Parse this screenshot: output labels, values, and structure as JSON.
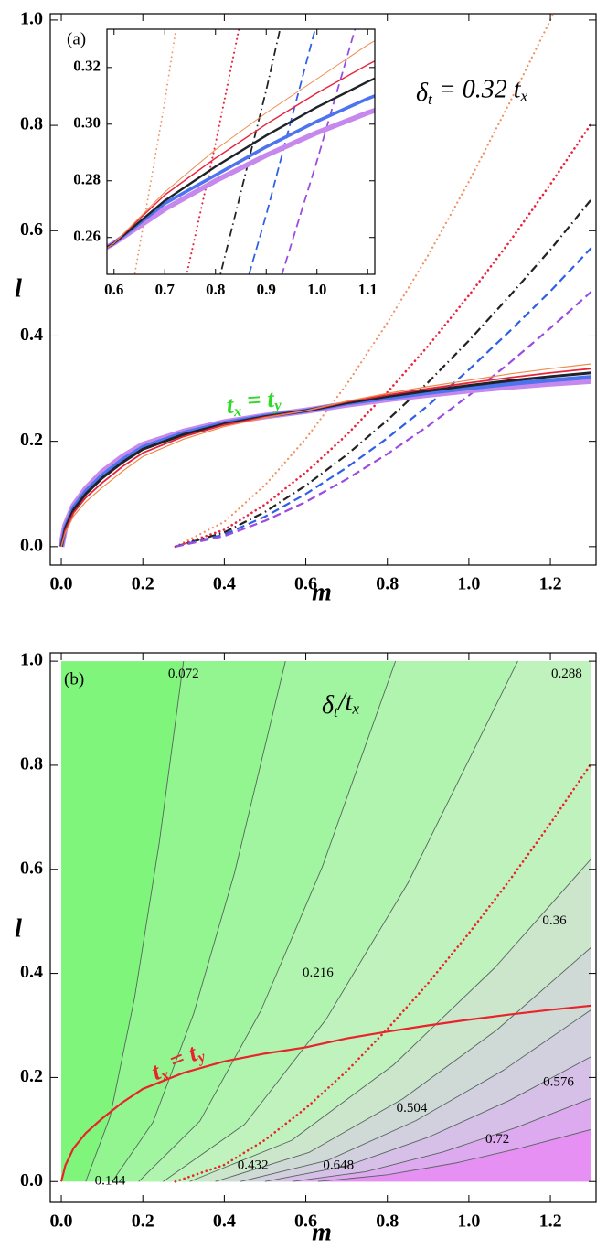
{
  "chart_data": [
    {
      "type": "line",
      "label": "(a)",
      "xlabel": "m",
      "ylabel": "l",
      "xlim": [
        -0.027,
        1.312
      ],
      "ylim": [
        -0.035,
        1.012
      ],
      "xticks": [
        {
          "value": 0,
          "label": "0.0"
        },
        0.2,
        0.4,
        0.6,
        0.8,
        {
          "value": 1,
          "label": "1.0"
        },
        1.2
      ],
      "yticks": [
        {
          "value": 0,
          "label": "0.0"
        },
        0.2,
        0.4,
        0.6,
        0.8,
        {
          "value": 1,
          "label": "1.0"
        }
      ],
      "annotations": [
        {
          "parts": [
            "δ",
            "t",
            " = 0.32 t",
            "x"
          ],
          "color": "#000000"
        },
        {
          "parts": [
            "t",
            "x",
            " = t",
            "y"
          ],
          "color": "#2fd92a"
        }
      ],
      "series": [
        {
          "color": "#f29060",
          "style": "dotted",
          "width": 2.2,
          "x": [
            0.28,
            0.4,
            0.5,
            0.6,
            0.7,
            0.8,
            0.9,
            1.0,
            1.1,
            1.2,
            1.3
          ],
          "values": [
            0,
            0.047,
            0.117,
            0.205,
            0.308,
            0.425,
            0.553,
            0.693,
            0.843,
            1.0,
            1.168
          ]
        },
        {
          "color": "#e8243c",
          "style": "dotted",
          "width": 2.6,
          "x": [
            0.28,
            0.4,
            0.5,
            0.6,
            0.7,
            0.8,
            0.9,
            1.0,
            1.1,
            1.2,
            1.3
          ],
          "values": [
            0,
            0.032,
            0.08,
            0.141,
            0.212,
            0.293,
            0.381,
            0.477,
            0.579,
            0.688,
            0.803
          ]
        },
        {
          "color": "#222222",
          "style": "dashdot",
          "width": 2.2,
          "x": [
            0.28,
            0.4,
            0.5,
            0.6,
            0.7,
            0.8,
            0.9,
            1.0,
            1.1,
            1.2,
            1.3
          ],
          "values": [
            0,
            0.027,
            0.066,
            0.116,
            0.174,
            0.24,
            0.312,
            0.391,
            0.476,
            0.564,
            0.659
          ]
        },
        {
          "color": "#2f5fe6",
          "style": "dashed",
          "width": 2.2,
          "x": [
            0.28,
            0.4,
            0.5,
            0.6,
            0.7,
            0.8,
            0.9,
            1.0,
            1.1,
            1.2,
            1.3
          ],
          "values": [
            0,
            0.023,
            0.057,
            0.1,
            0.15,
            0.206,
            0.268,
            0.336,
            0.409,
            0.485,
            0.567
          ]
        },
        {
          "color": "#9a4be0",
          "style": "dashed",
          "width": 2.2,
          "x": [
            0.28,
            0.4,
            0.5,
            0.6,
            0.7,
            0.8,
            0.9,
            1.0,
            1.1,
            1.2,
            1.3
          ],
          "values": [
            0,
            0.02,
            0.049,
            0.085,
            0.128,
            0.176,
            0.229,
            0.287,
            0.349,
            0.415,
            0.484
          ]
        },
        {
          "color": "#c788ee",
          "style": "solid",
          "width": 7,
          "x": [
            0,
            0.01,
            0.03,
            0.06,
            0.1,
            0.15,
            0.2,
            0.3,
            0.4,
            0.5,
            0.6,
            0.7,
            0.8,
            0.9,
            1.0,
            1.1,
            1.2,
            1.3
          ],
          "values": [
            0,
            0.04,
            0.077,
            0.109,
            0.141,
            0.17,
            0.193,
            0.218,
            0.236,
            0.248,
            0.258,
            0.27,
            0.28,
            0.289,
            0.297,
            0.304,
            0.31,
            0.315
          ]
        },
        {
          "color": "#4d74ee",
          "style": "solid",
          "width": 4.5,
          "x": [
            0,
            0.01,
            0.03,
            0.06,
            0.1,
            0.15,
            0.2,
            0.3,
            0.4,
            0.5,
            0.6,
            0.7,
            0.8,
            0.9,
            1.0,
            1.1,
            1.2,
            1.3
          ],
          "values": [
            0,
            0.037,
            0.074,
            0.105,
            0.135,
            0.165,
            0.189,
            0.216,
            0.235,
            0.248,
            0.258,
            0.272,
            0.282,
            0.292,
            0.301,
            0.309,
            0.316,
            0.322
          ]
        },
        {
          "color": "#1f2228",
          "style": "solid",
          "width": 3,
          "x": [
            0,
            0.01,
            0.03,
            0.06,
            0.1,
            0.15,
            0.2,
            0.3,
            0.4,
            0.5,
            0.6,
            0.7,
            0.8,
            0.9,
            1.0,
            1.1,
            1.2,
            1.3
          ],
          "values": [
            0,
            0.035,
            0.07,
            0.1,
            0.13,
            0.16,
            0.185,
            0.213,
            0.233,
            0.247,
            0.258,
            0.273,
            0.285,
            0.296,
            0.306,
            0.315,
            0.323,
            0.33
          ]
        },
        {
          "color": "#e8243c",
          "style": "solid",
          "width": 1.8,
          "x": [
            0,
            0.01,
            0.03,
            0.06,
            0.1,
            0.15,
            0.2,
            0.3,
            0.4,
            0.5,
            0.6,
            0.7,
            0.8,
            0.9,
            1.0,
            1.1,
            1.2,
            1.3
          ],
          "values": [
            0,
            0.031,
            0.064,
            0.093,
            0.121,
            0.152,
            0.178,
            0.209,
            0.231,
            0.246,
            0.258,
            0.275,
            0.288,
            0.3,
            0.311,
            0.321,
            0.33,
            0.338
          ]
        },
        {
          "color": "#f08a4b",
          "style": "solid",
          "width": 1.2,
          "x": [
            0,
            0.01,
            0.03,
            0.06,
            0.1,
            0.15,
            0.2,
            0.3,
            0.4,
            0.5,
            0.6,
            0.7,
            0.8,
            0.9,
            1.0,
            1.1,
            1.2,
            1.3
          ],
          "values": [
            0,
            0.027,
            0.058,
            0.085,
            0.112,
            0.143,
            0.171,
            0.204,
            0.228,
            0.245,
            0.258,
            0.276,
            0.291,
            0.304,
            0.316,
            0.328,
            0.338,
            0.347
          ]
        }
      ],
      "inset": {
        "xlim": [
          0.586,
          1.114
        ],
        "ylim": [
          0.247,
          0.3335
        ],
        "xticks": [
          0.6,
          0.7,
          0.8,
          0.9,
          {
            "value": 1,
            "label": "1.0"
          },
          1.1
        ],
        "yticks": [
          0.26,
          0.28,
          {
            "value": 0.3,
            "label": "0.30"
          },
          0.32
        ]
      }
    },
    {
      "type": "contour",
      "label": "(b)",
      "xlabel": "m",
      "ylabel": "l",
      "xlim": [
        -0.027,
        1.312
      ],
      "ylim": [
        -0.04,
        1.016
      ],
      "xticks": [
        {
          "value": 0,
          "label": "0.0"
        },
        0.2,
        0.4,
        0.6,
        0.8,
        {
          "value": 1,
          "label": "1.0"
        },
        1.2
      ],
      "yticks": [
        {
          "value": 0,
          "label": "0.0"
        },
        0.2,
        0.4,
        0.6,
        0.8,
        {
          "value": 1,
          "label": "1.0"
        }
      ],
      "fill": "#80f57c",
      "annotations": [
        {
          "parts": [
            "δ",
            "t",
            "/t",
            "x"
          ],
          "color": "#000000"
        },
        {
          "parts": [
            "t",
            "x",
            " = t",
            "y"
          ],
          "color": "#e8242a"
        }
      ],
      "contours": [
        {
          "level": 0.072,
          "color": "#93f58f",
          "x": [
            0.06,
            0.12,
            0.18,
            0.24,
            0.3
          ],
          "values": [
            0,
            0.125,
            0.354,
            0.649,
            1.0
          ]
        },
        {
          "level": 0.144,
          "color": "#a2f5a0",
          "x": [
            0.125,
            0.225,
            0.325,
            0.425,
            0.55
          ],
          "values": [
            0,
            0.114,
            0.323,
            0.593,
            1.0
          ]
        },
        {
          "level": 0.216,
          "color": "#b1f4af",
          "x": [
            0.19,
            0.34,
            0.49,
            0.64,
            0.82
          ],
          "values": [
            0,
            0.116,
            0.329,
            0.604,
            1.0
          ]
        },
        {
          "level": 0.288,
          "color": "#c0f2be",
          "x": [
            0.25,
            0.45,
            0.65,
            0.85,
            1.12
          ],
          "values": [
            0,
            0.11,
            0.312,
            0.573,
            1.0
          ]
        },
        {
          "level": 0.36,
          "color": "#cbe6cb",
          "x": [
            0.315,
            0.565,
            0.815,
            1.065,
            1.3
          ],
          "values": [
            0,
            0.079,
            0.224,
            0.412,
            0.62
          ]
        },
        {
          "level": 0.432,
          "color": "#cfdad6",
          "x": [
            0.378,
            0.608,
            0.838,
            1.068,
            1.3
          ],
          "values": [
            0,
            0.056,
            0.159,
            0.291,
            0.45
          ]
        },
        {
          "level": 0.504,
          "color": "#d2cfdf",
          "x": [
            0.44,
            0.655,
            0.87,
            1.085,
            1.3
          ],
          "values": [
            0,
            0.041,
            0.117,
            0.214,
            0.33
          ]
        },
        {
          "level": 0.576,
          "color": "#d7c0e7",
          "x": [
            0.5,
            0.7,
            0.9,
            1.1,
            1.3
          ],
          "values": [
            0,
            0.03,
            0.085,
            0.156,
            0.24
          ]
        },
        {
          "level": 0.648,
          "color": "#ddaaef",
          "x": [
            0.567,
            0.747,
            0.937,
            1.117,
            1.3
          ],
          "values": [
            0,
            0.019,
            0.057,
            0.104,
            0.16
          ]
        },
        {
          "level": 0.72,
          "color": "#e690f3",
          "x": [
            0.63,
            0.8,
            0.97,
            1.13,
            1.3
          ],
          "values": [
            0,
            0.013,
            0.036,
            0.065,
            0.1
          ]
        }
      ],
      "lines": [
        {
          "color": "#e8242a",
          "style": "dotted",
          "width": 2.6,
          "x": [
            0.28,
            0.4,
            0.5,
            0.6,
            0.7,
            0.8,
            0.9,
            1.0,
            1.1,
            1.2,
            1.3
          ],
          "values": [
            0,
            0.032,
            0.08,
            0.141,
            0.212,
            0.293,
            0.381,
            0.477,
            0.579,
            0.688,
            0.803
          ]
        },
        {
          "color": "#e8242a",
          "style": "solid",
          "width": 2.2,
          "x": [
            0,
            0.01,
            0.03,
            0.06,
            0.1,
            0.15,
            0.2,
            0.3,
            0.4,
            0.5,
            0.6,
            0.7,
            0.8,
            0.9,
            1.0,
            1.1,
            1.2,
            1.3
          ],
          "values": [
            0,
            0.031,
            0.064,
            0.093,
            0.121,
            0.152,
            0.178,
            0.209,
            0.231,
            0.246,
            0.258,
            0.275,
            0.288,
            0.3,
            0.311,
            0.321,
            0.33,
            0.338
          ]
        }
      ]
    }
  ]
}
